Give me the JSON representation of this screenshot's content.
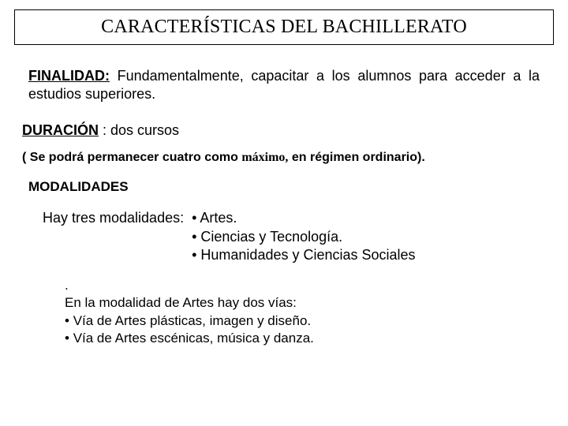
{
  "title": "CARACTERÍSTICAS DEL BACHILLERATO",
  "finalidad": {
    "label": "FINALIDAD:",
    "text": " Fundamentalmente, capacitar a los alumnos para acceder a la estudios superiores."
  },
  "duracion": {
    "label": "DURACIÓN",
    "text": " :  dos cursos"
  },
  "note": {
    "prefix": "( Se podrá permanecer cuatro como ",
    "emph": "máximo,",
    "suffix": " en régimen ordinario)."
  },
  "modalidades": {
    "label": "MODALIDADES",
    "intro": "Hay tres modalidades:",
    "items": [
      "Artes.",
      "Ciencias y Tecnología.",
      "Humanidades y Ciencias Sociales"
    ]
  },
  "vias": {
    "dot": ".",
    "intro": "En la modalidad de Artes hay dos vías:",
    "items": [
      "Vía de Artes plásticas, imagen y diseño.",
      "Vía de Artes escénicas, música y danza."
    ]
  },
  "colors": {
    "background": "#ffffff",
    "text": "#000000",
    "border": "#000000"
  },
  "typography": {
    "title_fontsize": 24,
    "body_fontsize": 18,
    "note_fontsize": 16,
    "vias_fontsize": 17
  }
}
